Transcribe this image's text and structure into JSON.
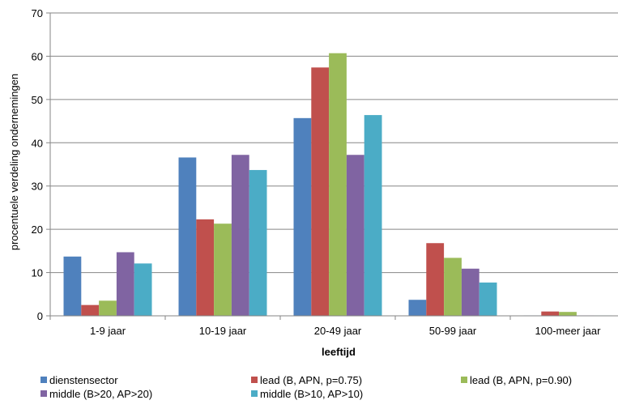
{
  "chart_data": {
    "type": "bar",
    "title": "",
    "xlabel": "leeftijd",
    "ylabel": "procentuele verdeling ondernemingen",
    "ylim": [
      0,
      70
    ],
    "yticks": [
      0,
      10,
      20,
      30,
      40,
      50,
      60,
      70
    ],
    "grid": true,
    "legend_position": "bottom",
    "categories": [
      "1-9 jaar",
      "10-19 jaar",
      "20-49 jaar",
      "50-99 jaar",
      "100-meer jaar"
    ],
    "series": [
      {
        "name": "dienstensector",
        "color": "#4F81BD",
        "values": [
          13.7,
          36.6,
          45.7,
          3.7,
          0.1
        ]
      },
      {
        "name": "lead (B, APN, p=0.75)",
        "color": "#C0504D",
        "values": [
          2.5,
          22.3,
          57.4,
          16.8,
          1.0
        ]
      },
      {
        "name": "lead (B, APN, p=0.90)",
        "color": "#9BBB59",
        "values": [
          3.5,
          21.3,
          60.7,
          13.4,
          0.9
        ]
      },
      {
        "name": "middle (B>20, AP>20)",
        "color": "#8064A2",
        "values": [
          14.7,
          37.2,
          37.2,
          10.9,
          0.1
        ]
      },
      {
        "name": "middle (B>10, AP>10)",
        "color": "#4BACC6",
        "values": [
          12.1,
          33.7,
          46.4,
          7.7,
          0.1
        ]
      }
    ]
  }
}
